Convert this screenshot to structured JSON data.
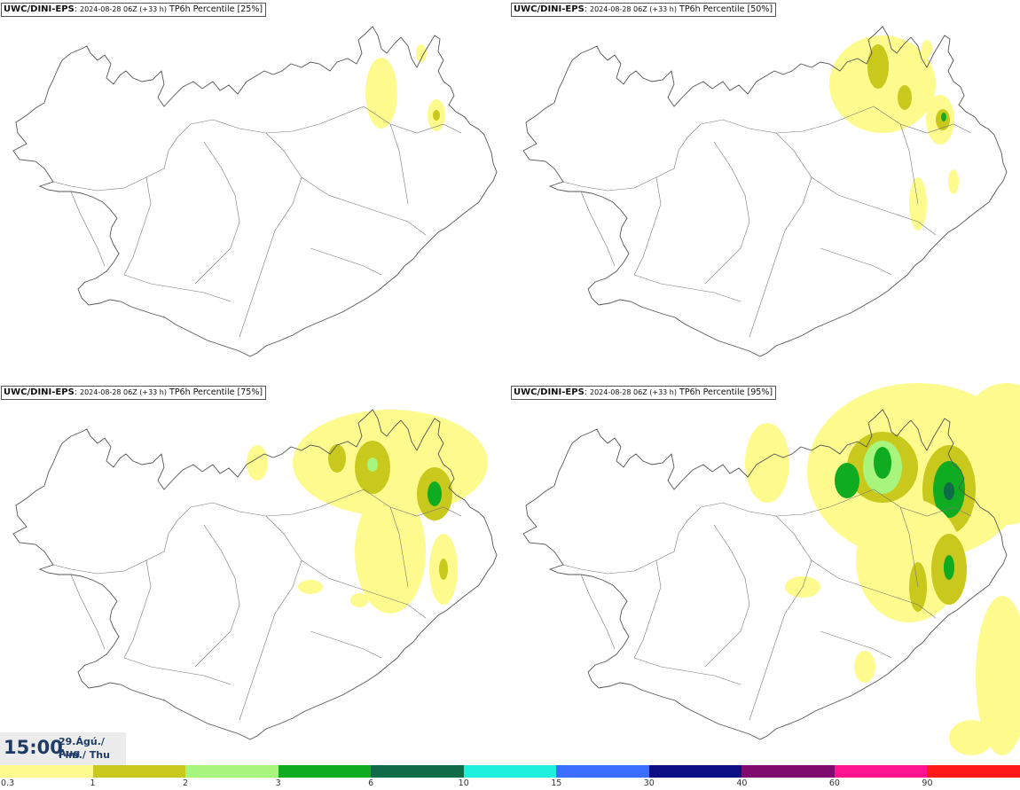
{
  "panels": [
    {
      "model": "UWC/DINI-EPS",
      "run": "2024-08-28 06Z (+33 h)",
      "field": "TP6h Percentile [25%]",
      "percentile": 25
    },
    {
      "model": "UWC/DINI-EPS",
      "run": "2024-08-28 06Z (+33 h)",
      "field": "TP6h Percentile [50%]",
      "percentile": 50
    },
    {
      "model": "UWC/DINI-EPS",
      "run": "2024-08-28 06Z (+33 h)",
      "field": "TP6h Percentile [75%]",
      "percentile": 75
    },
    {
      "model": "UWC/DINI-EPS",
      "run": "2024-08-28 06Z (+33 h)",
      "field": "TP6h Percentile [95%]",
      "percentile": 95
    }
  ],
  "valid_time": {
    "time": "15:00",
    "date_line1": "29.Ágú./ Aug",
    "date_line2": "Fim./ Thu"
  },
  "legend": {
    "labels": [
      "0.3",
      "1",
      "2",
      "3",
      "6",
      "10",
      "15",
      "30",
      "40",
      "60",
      "90"
    ],
    "colors": [
      "#fdfb8e",
      "#c9c81c",
      "#a7f57c",
      "#0fab20",
      "#0f6b48",
      "#1ff0de",
      "#3b6dff",
      "#0b0f82",
      "#7f0b6e",
      "#ff138f",
      "#ff1919"
    ]
  },
  "map": {
    "coastline_color": "#555555",
    "background": "#ffffff"
  }
}
